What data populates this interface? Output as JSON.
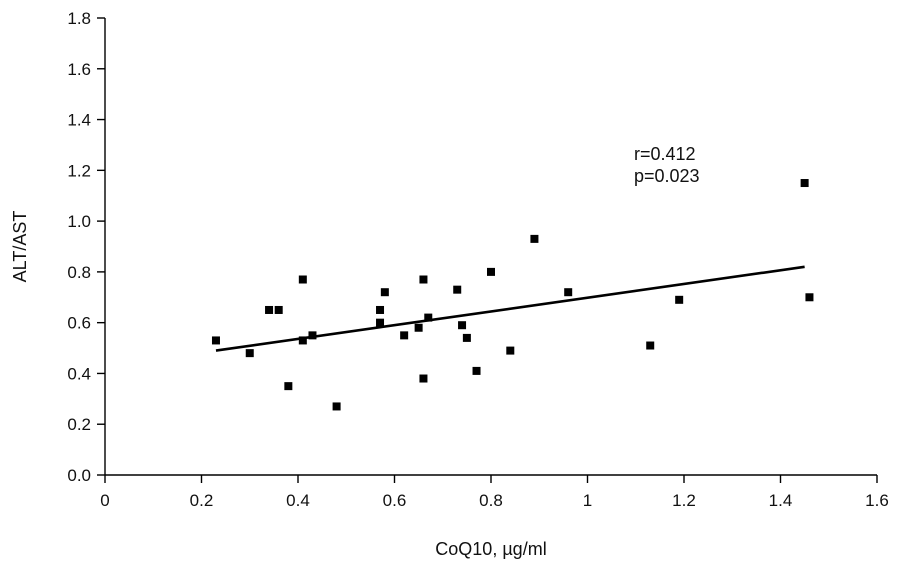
{
  "chart_data": {
    "type": "scatter",
    "title": "",
    "xlabel": "CoQ10, µg/ml",
    "ylabel": "ALT/AST",
    "xlim": [
      0,
      1.6
    ],
    "ylim": [
      0,
      1.8
    ],
    "x_ticks": [
      "0",
      "0.2",
      "0.4",
      "0.6",
      "0.8",
      "1",
      "1.2",
      "1.4",
      "1.6"
    ],
    "x_tick_values": [
      0,
      0.2,
      0.4,
      0.6,
      0.8,
      1.0,
      1.2,
      1.4,
      1.6
    ],
    "y_ticks": [
      "0.0",
      "0.2",
      "0.4",
      "0.6",
      "0.8",
      "1.0",
      "1.2",
      "1.4",
      "1.6",
      "1.8"
    ],
    "y_tick_values": [
      0,
      0.2,
      0.4,
      0.6,
      0.8,
      1.0,
      1.2,
      1.4,
      1.6,
      1.8
    ],
    "grid": false,
    "legend": "none",
    "marker": "square",
    "color": "#000000",
    "points": [
      {
        "x": 0.23,
        "y": 0.53
      },
      {
        "x": 0.3,
        "y": 0.48
      },
      {
        "x": 0.34,
        "y": 0.65
      },
      {
        "x": 0.36,
        "y": 0.65
      },
      {
        "x": 0.38,
        "y": 0.35
      },
      {
        "x": 0.41,
        "y": 0.77
      },
      {
        "x": 0.41,
        "y": 0.53
      },
      {
        "x": 0.43,
        "y": 0.55
      },
      {
        "x": 0.48,
        "y": 0.27
      },
      {
        "x": 0.57,
        "y": 0.65
      },
      {
        "x": 0.57,
        "y": 0.6
      },
      {
        "x": 0.58,
        "y": 0.72
      },
      {
        "x": 0.62,
        "y": 0.55
      },
      {
        "x": 0.65,
        "y": 0.58
      },
      {
        "x": 0.66,
        "y": 0.77
      },
      {
        "x": 0.66,
        "y": 0.38
      },
      {
        "x": 0.67,
        "y": 0.62
      },
      {
        "x": 0.73,
        "y": 0.73
      },
      {
        "x": 0.74,
        "y": 0.59
      },
      {
        "x": 0.75,
        "y": 0.54
      },
      {
        "x": 0.77,
        "y": 0.41
      },
      {
        "x": 0.8,
        "y": 0.8
      },
      {
        "x": 0.84,
        "y": 0.49
      },
      {
        "x": 0.89,
        "y": 0.93
      },
      {
        "x": 0.96,
        "y": 0.72
      },
      {
        "x": 1.13,
        "y": 0.51
      },
      {
        "x": 1.19,
        "y": 0.69
      },
      {
        "x": 1.45,
        "y": 1.15
      },
      {
        "x": 1.46,
        "y": 0.7
      }
    ],
    "trendline": {
      "x": [
        0.23,
        1.45
      ],
      "y": [
        0.49,
        0.82
      ]
    },
    "annotations": [
      "r=0.412",
      "p=0.023"
    ]
  }
}
